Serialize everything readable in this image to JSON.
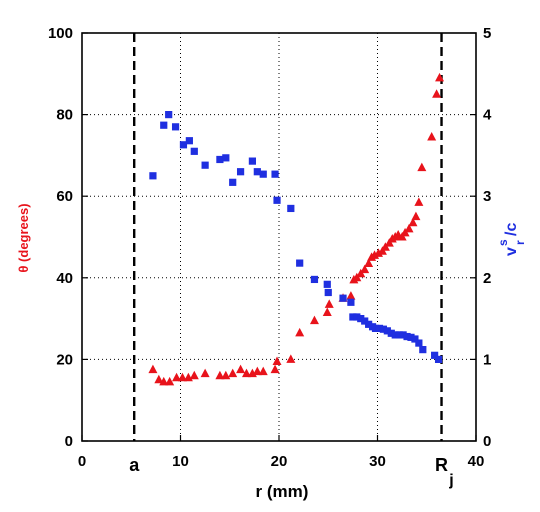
{
  "chart_data": {
    "type": "scatter",
    "xlabel": "r (mm)",
    "ylabel_left": "θ (degrees)",
    "ylabel_right": "v",
    "ylabel_right_sup": "s",
    "ylabel_right_sub": "r",
    "ylabel_right_tail": "/c",
    "xlim": [
      0,
      40
    ],
    "ylim_left": [
      0,
      100
    ],
    "ylim_right": [
      0,
      5
    ],
    "x_ticks": [
      0,
      10,
      20,
      30,
      40
    ],
    "y_left_ticks": [
      0,
      20,
      40,
      60,
      80,
      100
    ],
    "y_right_ticks": [
      0,
      1,
      2,
      3,
      4,
      5
    ],
    "grid": "dotted",
    "vertical_markers": [
      {
        "x": 5.3,
        "label": "a",
        "label_sub": ""
      },
      {
        "x": 36.5,
        "label": "R",
        "label_sub": "j"
      }
    ],
    "series": [
      {
        "axis": "left",
        "color": "#e8131b",
        "marker": "triangle",
        "x": [
          7.2,
          7.8,
          8.3,
          8.9,
          9.6,
          10.2,
          10.8,
          11.4,
          12.5,
          14.0,
          14.6,
          15.3,
          16.1,
          16.7,
          17.3,
          17.8,
          18.4,
          19.6,
          19.8,
          21.2,
          22.1,
          23.6,
          24.9,
          25.1,
          26.5,
          27.3,
          27.6,
          27.9,
          28.3,
          28.7,
          29.1,
          29.4,
          29.7,
          30.1,
          30.5,
          30.8,
          31.2,
          31.5,
          31.8,
          32.1,
          32.5,
          32.8,
          33.2,
          33.6,
          33.9,
          34.2,
          34.5,
          35.5,
          36.0,
          36.3
        ],
        "y": [
          17.5,
          15.0,
          14.5,
          14.5,
          15.5,
          15.5,
          15.5,
          16.0,
          16.5,
          16.0,
          16.0,
          16.5,
          17.5,
          16.5,
          16.5,
          17.0,
          17.0,
          17.5,
          19.5,
          20.0,
          26.5,
          29.5,
          31.5,
          33.5,
          35.0,
          35.5,
          39.5,
          40.0,
          41.0,
          42.0,
          43.5,
          45.0,
          45.5,
          46.0,
          46.5,
          47.5,
          48.5,
          49.5,
          50.0,
          50.5,
          50.0,
          51.0,
          52.0,
          53.5,
          55.0,
          58.5,
          67.0,
          74.5,
          85.0,
          89.0
        ]
      },
      {
        "axis": "right",
        "color": "#1f2fe0",
        "marker": "square",
        "x": [
          7.2,
          8.3,
          8.8,
          9.5,
          10.3,
          10.9,
          11.4,
          12.5,
          14.0,
          14.6,
          15.3,
          16.1,
          17.3,
          17.8,
          18.4,
          19.6,
          19.8,
          21.2,
          22.1,
          23.6,
          24.9,
          25.0,
          26.5,
          27.3,
          27.5,
          27.9,
          28.3,
          28.7,
          29.1,
          29.5,
          29.8,
          30.2,
          30.6,
          31.0,
          31.4,
          31.8,
          32.2,
          32.6,
          33.0,
          33.4,
          33.8,
          34.2,
          34.6,
          35.8,
          36.2
        ],
        "y": [
          3.25,
          3.87,
          4.0,
          3.85,
          3.63,
          3.68,
          3.55,
          3.38,
          3.45,
          3.47,
          3.17,
          3.3,
          3.43,
          3.3,
          3.27,
          3.27,
          2.95,
          2.85,
          2.18,
          1.98,
          1.92,
          1.82,
          1.75,
          1.7,
          1.52,
          1.52,
          1.5,
          1.47,
          1.43,
          1.4,
          1.38,
          1.38,
          1.37,
          1.35,
          1.32,
          1.3,
          1.3,
          1.3,
          1.28,
          1.27,
          1.25,
          1.2,
          1.12,
          1.05,
          1.0
        ]
      }
    ]
  }
}
